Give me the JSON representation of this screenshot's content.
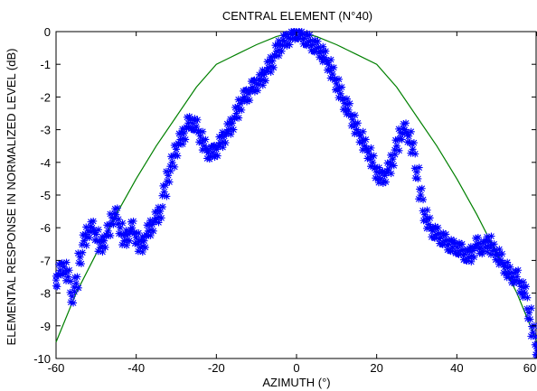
{
  "chart_data": {
    "type": "scatter",
    "title": "CENTRAL ELEMENT (N°40)",
    "xlabel": "AZIMUTH (°)",
    "ylabel": "ELEMENTAL RESPONSE IN NORMALIZED LEVEL (dB)",
    "xlim": [
      -60,
      60
    ],
    "ylim": [
      -10,
      0
    ],
    "xticks": [
      "-60",
      "-40",
      "-20",
      "0",
      "20",
      "40",
      "60"
    ],
    "yticks": [
      "0",
      "-1",
      "-2",
      "-3",
      "-4",
      "-5",
      "-6",
      "-7",
      "-8",
      "-9",
      "-10"
    ],
    "grid": false,
    "legend": "none",
    "series": [
      {
        "marker": "asterisk",
        "color": "#0000ff",
        "x": [
          -60,
          -59,
          -58,
          -57,
          -56,
          -55,
          -54,
          -53,
          -52,
          -51,
          -50,
          -49,
          -48,
          -47,
          -46,
          -45,
          -44,
          -43,
          -42,
          -41,
          -40,
          -39,
          -38,
          -37,
          -36,
          -35,
          -34,
          -33,
          -32,
          -31,
          -30,
          -29,
          -28,
          -27,
          -26,
          -25,
          -24,
          -23,
          -22,
          -21,
          -20,
          -19,
          -18,
          -17,
          -16,
          -15,
          -14,
          -13,
          -12,
          -11,
          -10,
          -9,
          -8,
          -7,
          -6,
          -5,
          -4,
          -3,
          -2,
          -1,
          0,
          1,
          2,
          3,
          4,
          5,
          6,
          7,
          8,
          9,
          10,
          11,
          12,
          13,
          14,
          15,
          16,
          17,
          18,
          19,
          20,
          21,
          22,
          23,
          24,
          25,
          26,
          27,
          28,
          29,
          30,
          31,
          32,
          33,
          34,
          35,
          36,
          37,
          38,
          39,
          40,
          41,
          42,
          43,
          44,
          45,
          46,
          47,
          48,
          49,
          50,
          51,
          52,
          53,
          54,
          55,
          56,
          57,
          58,
          59,
          60
        ],
        "y": [
          -7.6,
          -7.3,
          -7.2,
          -7.5,
          -8.1,
          -7.7,
          -6.9,
          -6.4,
          -6.1,
          -6.0,
          -6.2,
          -6.6,
          -6.4,
          -6.1,
          -5.7,
          -5.6,
          -6.0,
          -6.4,
          -6.2,
          -6.0,
          -6.3,
          -6.6,
          -6.4,
          -6.1,
          -5.9,
          -5.7,
          -5.5,
          -4.9,
          -4.4,
          -4.0,
          -3.6,
          -3.3,
          -3.1,
          -2.8,
          -2.8,
          -2.9,
          -3.2,
          -3.5,
          -3.7,
          -3.7,
          -3.6,
          -3.4,
          -3.2,
          -3.0,
          -2.8,
          -2.5,
          -2.2,
          -2.0,
          -1.9,
          -1.7,
          -1.6,
          -1.5,
          -1.3,
          -1.1,
          -0.9,
          -0.6,
          -0.4,
          -0.3,
          -0.2,
          -0.1,
          0.0,
          -0.1,
          -0.2,
          -0.3,
          -0.4,
          -0.5,
          -0.6,
          -0.8,
          -1.0,
          -1.3,
          -1.6,
          -1.9,
          -2.2,
          -2.4,
          -2.7,
          -3.0,
          -3.2,
          -3.5,
          -3.7,
          -4.0,
          -4.3,
          -4.5,
          -4.4,
          -4.2,
          -3.9,
          -3.5,
          -3.1,
          -3.0,
          -3.2,
          -3.6,
          -4.3,
          -5.0,
          -5.6,
          -5.9,
          -6.1,
          -6.2,
          -6.3,
          -6.4,
          -6.5,
          -6.6,
          -6.6,
          -6.7,
          -6.8,
          -6.9,
          -6.7,
          -6.5,
          -6.6,
          -6.6,
          -6.4,
          -6.7,
          -6.8,
          -7.0,
          -7.2,
          -7.4,
          -7.5,
          -7.5,
          -7.8,
          -8.0,
          -8.6,
          -9.2,
          -9.7
        ]
      },
      {
        "marker": "line",
        "color": "#008000",
        "x": [
          -60,
          -55,
          -50,
          -45,
          -40,
          -35,
          -30,
          -25,
          -20,
          -15,
          -10,
          -5,
          0,
          5,
          10,
          15,
          20,
          25,
          30,
          35,
          40,
          45,
          50,
          55,
          60
        ],
        "y": [
          -9.5,
          -8.0,
          -6.8,
          -5.6,
          -4.5,
          -3.5,
          -2.6,
          -1.7,
          -1.0,
          -0.7,
          -0.4,
          -0.15,
          0.0,
          -0.15,
          -0.4,
          -0.7,
          -1.0,
          -1.7,
          -2.6,
          -3.5,
          -4.5,
          -5.6,
          -6.8,
          -8.0,
          -9.5
        ]
      }
    ]
  }
}
